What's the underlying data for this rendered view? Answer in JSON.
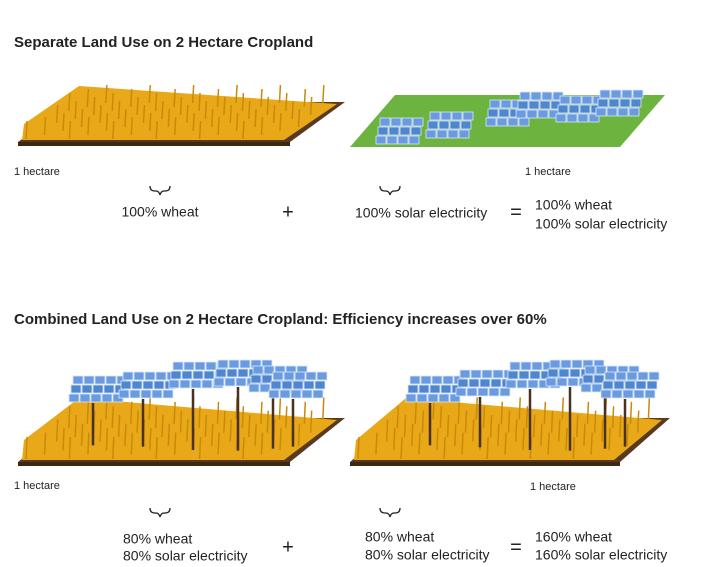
{
  "sections": [
    {
      "title": "Separate Land Use on 2 Hectare Cropland",
      "left": {
        "area": "1 hectare",
        "lines": [
          "100% wheat"
        ]
      },
      "plus": "+",
      "right": {
        "area": "1 hectare",
        "lines": [
          "100% solar electricity"
        ]
      },
      "equals": "=",
      "result": [
        "100% wheat",
        "100% solar electricity"
      ]
    },
    {
      "title": "Combined Land Use on 2 Hectare Cropland: Efficiency increases over 60%",
      "left": {
        "area": "1 hectare",
        "lines": [
          "80% wheat",
          "80% solar electricity"
        ]
      },
      "plus": "+",
      "right": {
        "area": "1 hectare",
        "lines": [
          "80% wheat",
          "80% solar electricity"
        ]
      },
      "equals": "=",
      "result": [
        "160% wheat",
        "160% solar electricity"
      ]
    }
  ]
}
